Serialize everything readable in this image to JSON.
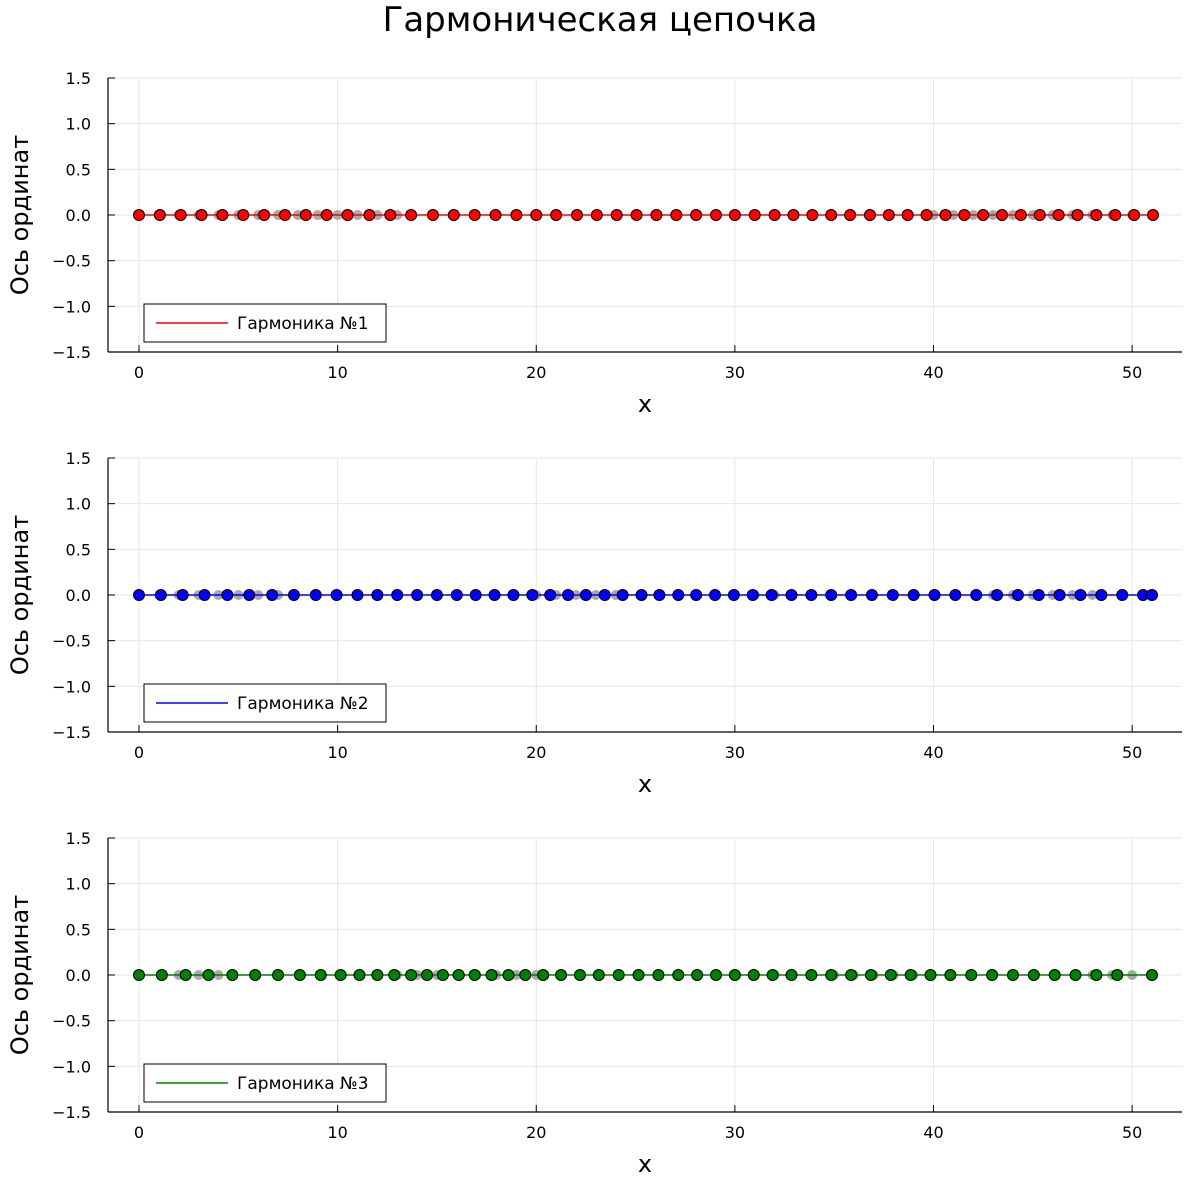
{
  "figure_title": "Гармоническая цепочка",
  "chart_data": [
    {
      "type": "scatter",
      "title": "",
      "xlabel": "x",
      "ylabel": "Ось ординат",
      "xlim": [
        0,
        51
      ],
      "ylim": [
        -1.5,
        1.5
      ],
      "xticks": [
        "0",
        "10",
        "20",
        "30",
        "40",
        "50"
      ],
      "yticks": [
        "1.5",
        "1.0",
        "0.5",
        "0.0",
        "−0.5",
        "−1.0",
        "−1.5"
      ],
      "grid": true,
      "legend_position": "bottom-left",
      "series": [
        {
          "name": "Гармоника №1",
          "color": "#ff0000",
          "marker": "circle",
          "x": [
            0,
            1.05,
            2.1,
            3.15,
            4.2,
            5.25,
            6.3,
            7.35,
            8.4,
            9.45,
            10.5,
            11.6,
            12.65,
            13.7,
            14.8,
            15.85,
            16.9,
            17.95,
            19.0,
            20.0,
            21.0,
            22.05,
            23.05,
            24.05,
            25.05,
            26.05,
            27.05,
            28.05,
            29.05,
            30.0,
            31.0,
            32.0,
            32.95,
            33.9,
            34.85,
            35.8,
            36.8,
            37.75,
            38.7,
            39.65,
            40.6,
            41.55,
            42.5,
            43.45,
            44.4,
            45.35,
            46.3,
            47.25,
            48.2,
            49.15,
            50.1,
            51.05
          ],
          "y": [
            0,
            0,
            0,
            0,
            0,
            0,
            0,
            0,
            0,
            0,
            0,
            0,
            0,
            0,
            0,
            0,
            0,
            0,
            0,
            0,
            0,
            0,
            0,
            0,
            0,
            0,
            0,
            0,
            0,
            0,
            0,
            0,
            0,
            0,
            0,
            0,
            0,
            0,
            0,
            0,
            0,
            0,
            0,
            0,
            0,
            0,
            0,
            0,
            0,
            0,
            0,
            0
          ]
        },
        {
          "name": "",
          "color": "#999999",
          "marker": "circle-gray",
          "x": [
            2,
            3,
            4,
            5,
            6,
            7,
            8,
            9,
            10,
            11,
            12,
            13,
            40,
            41,
            42,
            43,
            44,
            45,
            46,
            47,
            48,
            49,
            50
          ],
          "y": [
            0,
            0,
            0,
            0,
            0,
            0,
            0,
            0,
            0,
            0,
            0,
            0,
            0,
            0,
            0,
            0,
            0,
            0,
            0,
            0,
            0,
            0,
            0
          ]
        }
      ]
    },
    {
      "type": "scatter",
      "title": "",
      "xlabel": "x",
      "ylabel": "Ось ординат",
      "xlim": [
        0,
        51
      ],
      "ylim": [
        -1.5,
        1.5
      ],
      "xticks": [
        "0",
        "10",
        "20",
        "30",
        "40",
        "50"
      ],
      "yticks": [
        "1.5",
        "1.0",
        "0.5",
        "0.0",
        "−0.5",
        "−1.0",
        "−1.5"
      ],
      "grid": true,
      "legend_position": "bottom-left",
      "series": [
        {
          "name": "Гармоника №2",
          "color": "#0000ff",
          "marker": "circle",
          "x": [
            0,
            1.1,
            2.2,
            3.3,
            4.45,
            5.55,
            6.7,
            7.8,
            8.9,
            9.95,
            11.0,
            12.0,
            13.0,
            14.0,
            15.0,
            16.0,
            16.95,
            17.9,
            18.85,
            19.8,
            20.7,
            21.6,
            22.5,
            23.45,
            24.35,
            25.3,
            26.2,
            27.15,
            28.05,
            29.0,
            29.95,
            30.9,
            31.85,
            32.85,
            33.85,
            34.85,
            35.85,
            36.9,
            37.95,
            39.0,
            40.05,
            41.1,
            42.15,
            43.2,
            44.25,
            45.3,
            46.35,
            47.4,
            48.45,
            49.5,
            50.55,
            51.0
          ],
          "y": [
            0,
            0,
            0,
            0,
            0,
            0,
            0,
            0,
            0,
            0,
            0,
            0,
            0,
            0,
            0,
            0,
            0,
            0,
            0,
            0,
            0,
            0,
            0,
            0,
            0,
            0,
            0,
            0,
            0,
            0,
            0,
            0,
            0,
            0,
            0,
            0,
            0,
            0,
            0,
            0,
            0,
            0,
            0,
            0,
            0,
            0,
            0,
            0,
            0,
            0,
            0,
            0
          ]
        },
        {
          "name": "",
          "color": "#999999",
          "marker": "circle-gray",
          "x": [
            2,
            3,
            4,
            5,
            6,
            7,
            20,
            21,
            22,
            23,
            24,
            28,
            29,
            30,
            31,
            32,
            43,
            44,
            45,
            46,
            47,
            48
          ],
          "y": [
            0,
            0,
            0,
            0,
            0,
            0,
            0,
            0,
            0,
            0,
            0,
            0,
            0,
            0,
            0,
            0,
            0,
            0,
            0,
            0,
            0,
            0
          ]
        }
      ]
    },
    {
      "type": "scatter",
      "title": "",
      "xlabel": "x",
      "ylabel": "Ось ординат",
      "xlim": [
        0,
        51
      ],
      "ylim": [
        -1.5,
        1.5
      ],
      "xticks": [
        "0",
        "10",
        "20",
        "30",
        "40",
        "50"
      ],
      "yticks": [
        "1.5",
        "1.0",
        "0.5",
        "0.0",
        "−0.5",
        "−1.0",
        "−1.5"
      ],
      "grid": true,
      "legend_position": "bottom-left",
      "series": [
        {
          "name": "Гармоника №3",
          "color": "#008000",
          "marker": "circle",
          "x": [
            0,
            1.15,
            2.35,
            3.5,
            4.7,
            5.85,
            7.0,
            8.1,
            9.15,
            10.15,
            11.1,
            12.0,
            12.85,
            13.7,
            14.5,
            15.3,
            16.1,
            16.9,
            17.75,
            18.6,
            19.45,
            20.35,
            21.25,
            22.2,
            23.15,
            24.15,
            25.15,
            26.15,
            27.15,
            28.1,
            29.05,
            30.0,
            30.95,
            31.9,
            32.85,
            33.85,
            34.85,
            35.85,
            36.85,
            37.85,
            38.85,
            39.85,
            40.85,
            41.9,
            42.95,
            44.0,
            45.05,
            46.1,
            47.15,
            48.2,
            49.25,
            51.0
          ],
          "y": [
            0,
            0,
            0,
            0,
            0,
            0,
            0,
            0,
            0,
            0,
            0,
            0,
            0,
            0,
            0,
            0,
            0,
            0,
            0,
            0,
            0,
            0,
            0,
            0,
            0,
            0,
            0,
            0,
            0,
            0,
            0,
            0,
            0,
            0,
            0,
            0,
            0,
            0,
            0,
            0,
            0,
            0,
            0,
            0,
            0,
            0,
            0,
            0,
            0,
            0,
            0,
            0
          ]
        },
        {
          "name": "",
          "color": "#999999",
          "marker": "circle-gray",
          "x": [
            2,
            3,
            4,
            13,
            14,
            15,
            16,
            17,
            18,
            19,
            20,
            29,
            30,
            31,
            32,
            35,
            36,
            37,
            38,
            39,
            48,
            49,
            50
          ],
          "y": [
            0,
            0,
            0,
            0,
            0,
            0,
            0,
            0,
            0,
            0,
            0,
            0,
            0,
            0,
            0,
            0,
            0,
            0,
            0,
            0,
            0,
            0,
            0
          ]
        }
      ]
    }
  ]
}
